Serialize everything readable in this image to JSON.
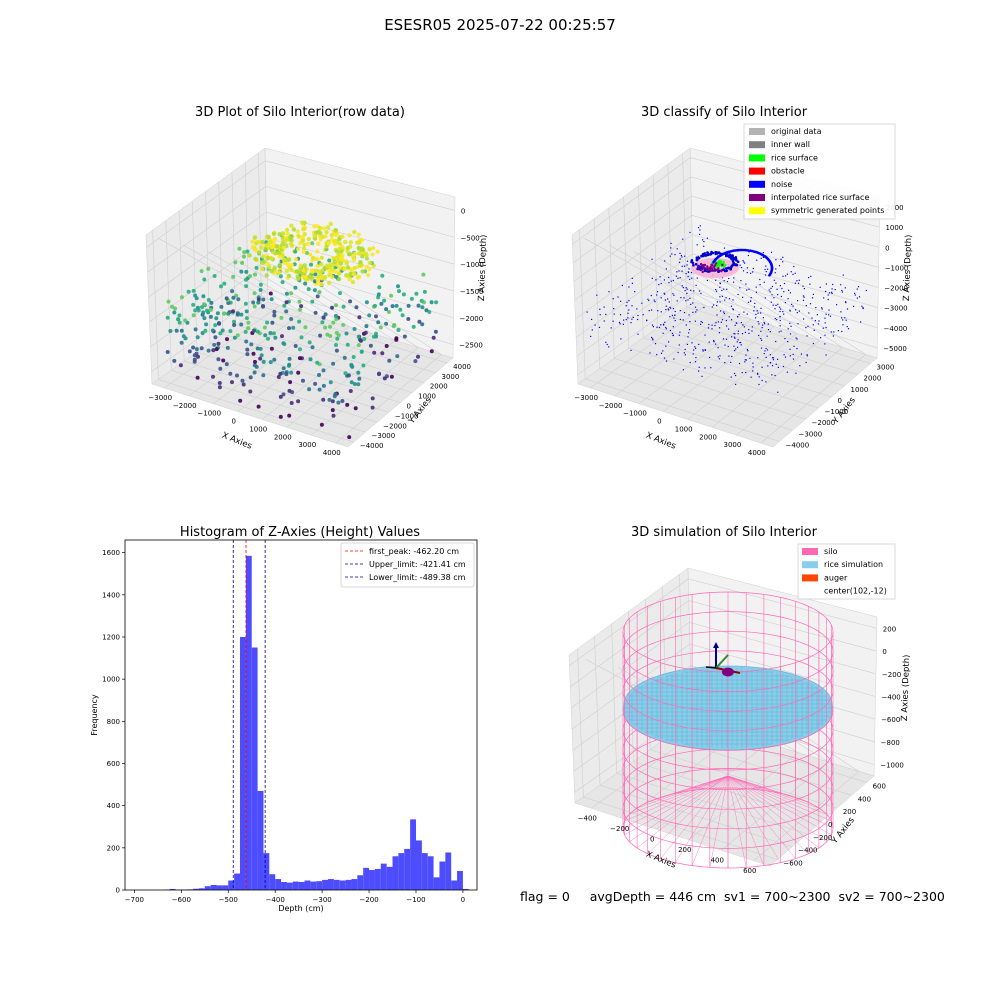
{
  "suptitle": "ESESR05 2025-07-22 00:25:57",
  "footer": {
    "flag": "flag = 0",
    "avg": "avgDepth = 446 cm",
    "sv1": "sv1 = 700~2300",
    "sv2": "sv2 = 700~2300"
  },
  "chart_data": [
    {
      "type": "scatter",
      "title": "3D Plot of Silo Interior(row data)",
      "xlabel": "X Axies",
      "ylabel": "Y Axies",
      "zlabel": "Z Axies (Depth)",
      "xticks": [
        "−3000",
        "−2000",
        "−1000",
        "0",
        "1000",
        "2000",
        "3000",
        "4000"
      ],
      "yticks": [
        "−4000",
        "−3000",
        "−2000",
        "−1000",
        "0",
        "1000",
        "2000",
        "3000",
        "4000"
      ],
      "zticks": [
        "−2500",
        "−2000",
        "−1500",
        "−1000",
        "−500",
        "0"
      ],
      "xlim": [
        -3000,
        4000
      ],
      "ylim": [
        -4000,
        4000
      ],
      "zlim": [
        -2800,
        0
      ],
      "colormap": "viridis",
      "grid": true
    },
    {
      "type": "scatter",
      "title": "3D classify of Silo Interior",
      "xlabel": "X Axies",
      "ylabel": "Y Axies",
      "zlabel": "Z Axies (Depth)",
      "xticks": [
        "−3000",
        "−2000",
        "−1000",
        "0",
        "1000",
        "2000",
        "3000",
        "4000"
      ],
      "yticks": [
        "−4000",
        "−3000",
        "−2000",
        "−1000",
        "0",
        "1000",
        "2000",
        "3000"
      ],
      "zticks": [
        "−5000",
        "−4000",
        "−3000",
        "−2000",
        "−1000",
        "0",
        "1000",
        "2000"
      ],
      "xlim": [
        -3000,
        4000
      ],
      "ylim": [
        -4000,
        3000
      ],
      "zlim": [
        -5000,
        2000
      ],
      "grid": true,
      "legend_position": "top-right",
      "legend": [
        {
          "label": "original data",
          "color": "#b3b3b3"
        },
        {
          "label": "inner wall",
          "color": "#808080"
        },
        {
          "label": "rice surface",
          "color": "#00ff00"
        },
        {
          "label": "obstacle",
          "color": "#ff0000"
        },
        {
          "label": "noise",
          "color": "#0000ff"
        },
        {
          "label": "interpolated rice surface",
          "color": "#800080"
        },
        {
          "label": "symmetric generated points",
          "color": "#ffff00"
        }
      ]
    },
    {
      "type": "bar",
      "title": "Histogram of Z-Axies (Height) Values",
      "xlabel": "Depth (cm)",
      "ylabel": "Frequency",
      "xlim": [
        -720,
        30
      ],
      "ylim": [
        0,
        1660
      ],
      "xticks": [
        -700,
        -600,
        -500,
        -400,
        -300,
        -200,
        -100,
        0
      ],
      "xtick_labels": [
        "−700",
        "−600",
        "−500",
        "−400",
        "−300",
        "−200",
        "−100",
        "0"
      ],
      "yticks": [
        0,
        200,
        400,
        600,
        800,
        1000,
        1200,
        1400,
        1600
      ],
      "bin_width": 12.5,
      "bar_color": "#4d4dff",
      "bins": [
        [
          -637.5,
          2
        ],
        [
          -625,
          5
        ],
        [
          -612.5,
          2
        ],
        [
          -600,
          2
        ],
        [
          -587.5,
          3
        ],
        [
          -575,
          6
        ],
        [
          -562.5,
          8
        ],
        [
          -550,
          18
        ],
        [
          -537.5,
          24
        ],
        [
          -525,
          22
        ],
        [
          -512.5,
          22
        ],
        [
          -500,
          45
        ],
        [
          -487.5,
          78
        ],
        [
          -475,
          1200
        ],
        [
          -462.5,
          1585
        ],
        [
          -450,
          1150
        ],
        [
          -437.5,
          470
        ],
        [
          -425,
          175
        ],
        [
          -412.5,
          75
        ],
        [
          -400,
          52
        ],
        [
          -387.5,
          38
        ],
        [
          -375,
          35
        ],
        [
          -362.5,
          40
        ],
        [
          -350,
          38
        ],
        [
          -337.5,
          45
        ],
        [
          -325,
          40
        ],
        [
          -312.5,
          42
        ],
        [
          -300,
          48
        ],
        [
          -287.5,
          52
        ],
        [
          -275,
          48
        ],
        [
          -262.5,
          45
        ],
        [
          -250,
          48
        ],
        [
          -237.5,
          52
        ],
        [
          -225,
          70
        ],
        [
          -212.5,
          105
        ],
        [
          -200,
          95
        ],
        [
          -187.5,
          100
        ],
        [
          -175,
          125
        ],
        [
          -162.5,
          110
        ],
        [
          -150,
          160
        ],
        [
          -137.5,
          175
        ],
        [
          -125,
          195
        ],
        [
          -112.5,
          335
        ],
        [
          -100,
          235
        ],
        [
          -87.5,
          175
        ],
        [
          -75,
          160
        ],
        [
          -62.5,
          60
        ],
        [
          -50,
          135
        ],
        [
          -37.5,
          178
        ],
        [
          -25,
          45
        ],
        [
          -12.5,
          90
        ],
        [
          0,
          5
        ]
      ],
      "vlines": [
        {
          "label": "first_peak: -462.20 cm",
          "x": -462.2,
          "color": "#ff0000"
        },
        {
          "label": "Upper_limit: -421.41 cm",
          "x": -421.41,
          "color": "#00008b"
        },
        {
          "label": "Lower_limit: -489.38 cm",
          "x": -489.38,
          "color": "#00008b"
        }
      ],
      "legend_position": "top-right"
    },
    {
      "type": "scatter",
      "title": "3D simulation of Silo Interior",
      "xlabel": "X Axies",
      "ylabel": "Y Axies",
      "zlabel": "Z Axies (Depth)",
      "xticks": [
        "−400",
        "−200",
        "0",
        "200",
        "400",
        "600"
      ],
      "yticks": [
        "−600",
        "−400",
        "−200",
        "0",
        "200",
        "400",
        "600"
      ],
      "zticks": [
        "−1000",
        "−800",
        "−600",
        "−400",
        "−200",
        "0",
        "200"
      ],
      "xlim": [
        -500,
        700
      ],
      "ylim": [
        -700,
        700
      ],
      "zlim": [
        -1000,
        250
      ],
      "grid": true,
      "legend_position": "top-right",
      "legend": [
        {
          "label": "silo",
          "color": "#ff69b4"
        },
        {
          "label": "rice simulation",
          "color": "#87ceeb"
        },
        {
          "label": "auger",
          "color": "#ff4500"
        },
        {
          "label": "center(102,-12)",
          "color": ""
        }
      ]
    }
  ]
}
